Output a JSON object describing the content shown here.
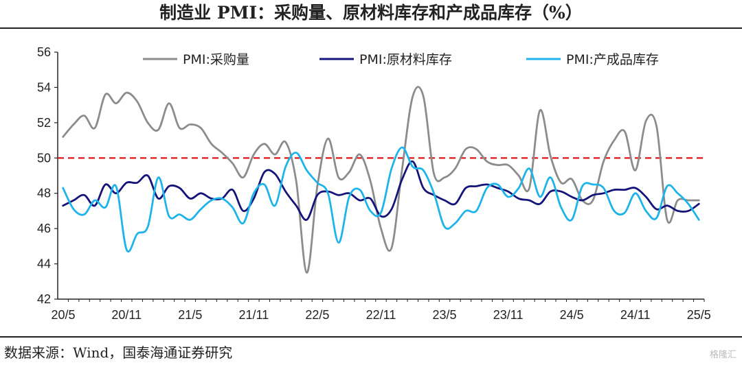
{
  "title": "制造业 PMI：采购量、原材料库存和产成品库存（%）",
  "source": "数据来源：Wind，国泰海通证券研究",
  "watermark": "格隆汇",
  "colors": {
    "purchase": "#8c8c8c",
    "raw": "#14147a",
    "finished": "#1eb4ea",
    "ref": "#e02020"
  },
  "chart_data": {
    "type": "line",
    "x": [
      "20/5",
      "20/6",
      "20/7",
      "20/8",
      "20/9",
      "20/10",
      "20/11",
      "20/12",
      "21/1",
      "21/2",
      "21/3",
      "21/4",
      "21/5",
      "21/6",
      "21/7",
      "21/8",
      "21/9",
      "21/10",
      "21/11",
      "21/12",
      "22/1",
      "22/2",
      "22/3",
      "22/4",
      "22/5",
      "22/6",
      "22/7",
      "22/8",
      "22/9",
      "22/10",
      "22/11",
      "22/12",
      "23/1",
      "23/2",
      "23/3",
      "23/4",
      "23/5",
      "23/6",
      "23/7",
      "23/8",
      "23/9",
      "23/10",
      "23/11",
      "23/12",
      "24/1",
      "24/2",
      "24/3",
      "24/4",
      "24/5",
      "24/6",
      "24/7",
      "24/8",
      "24/9",
      "24/10",
      "24/11",
      "24/12",
      "25/1",
      "25/2",
      "25/3",
      "25/4",
      "25/5"
    ],
    "x_ticks": [
      "20/5",
      "20/11",
      "21/5",
      "21/11",
      "22/5",
      "22/11",
      "23/5",
      "23/11",
      "24/5",
      "24/11",
      "25/5"
    ],
    "series": [
      {
        "name": "PMI:采购量",
        "key": "purchase",
        "values": [
          51.2,
          51.9,
          52.4,
          51.7,
          53.6,
          53.1,
          53.7,
          53.2,
          52.0,
          51.6,
          53.1,
          51.7,
          51.9,
          51.7,
          50.8,
          50.3,
          49.7,
          48.9,
          50.2,
          50.8,
          50.2,
          50.9,
          48.7,
          43.5,
          48.4,
          51.1,
          48.9,
          49.2,
          50.2,
          48.7,
          46.0,
          44.9,
          49.4,
          53.5,
          53.5,
          49.1,
          48.9,
          49.4,
          50.5,
          50.5,
          49.8,
          49.6,
          49.6,
          49.0,
          48.3,
          52.7,
          50.1,
          48.6,
          48.8,
          47.6,
          47.6,
          49.8,
          51.0,
          51.5,
          49.3,
          52.1,
          51.8,
          46.5,
          47.6,
          47.6,
          47.6
        ]
      },
      {
        "name": "PMI:原材料库存",
        "key": "raw",
        "values": [
          47.3,
          47.6,
          47.9,
          47.3,
          48.5,
          48.0,
          48.6,
          48.6,
          49.0,
          47.7,
          48.4,
          48.3,
          47.7,
          48.0,
          47.7,
          47.7,
          48.2,
          47.0,
          47.7,
          49.2,
          49.1,
          48.1,
          47.3,
          46.5,
          47.9,
          48.1,
          47.9,
          48.0,
          47.6,
          47.7,
          46.7,
          47.1,
          48.8,
          49.8,
          48.3,
          47.9,
          47.6,
          47.4,
          48.3,
          48.4,
          48.5,
          48.3,
          48.1,
          47.7,
          47.6,
          47.4,
          48.1,
          48.1,
          47.8,
          47.6,
          47.9,
          48.0,
          48.2,
          48.2,
          48.3,
          47.8,
          47.1,
          47.3,
          47.0,
          47.0,
          47.4
        ]
      },
      {
        "name": "PMI:产成品库存",
        "key": "finished",
        "values": [
          48.3,
          47.1,
          46.8,
          47.6,
          47.2,
          48.4,
          44.8,
          45.7,
          46.1,
          48.9,
          46.7,
          46.8,
          46.5,
          47.1,
          47.6,
          47.7,
          47.2,
          46.3,
          48.0,
          48.5,
          47.3,
          49.5,
          50.3,
          49.3,
          48.6,
          48.0,
          45.2,
          47.8,
          48.2,
          47.0,
          46.9,
          49.4,
          50.6,
          49.5,
          49.3,
          48.0,
          46.1,
          46.3,
          47.0,
          47.0,
          48.3,
          48.5,
          47.8,
          48.3,
          49.4,
          47.8,
          48.9,
          47.2,
          46.5,
          48.4,
          48.5,
          48.3,
          47.0,
          46.9,
          48.0,
          47.0,
          46.6,
          48.4,
          48.0,
          47.4,
          46.5
        ]
      }
    ],
    "reference_line": 50,
    "ylim": [
      42,
      56
    ],
    "y_ticks": [
      42,
      44,
      46,
      48,
      50,
      52,
      54,
      56
    ],
    "legend": "top",
    "grid": false
  }
}
